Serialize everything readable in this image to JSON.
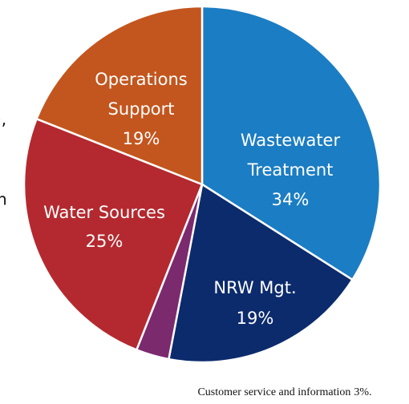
{
  "chart_data": {
    "type": "pie",
    "categories": [
      [
        "Wastewater",
        "Treatment"
      ],
      [
        "NRW Mgt."
      ],
      [
        "Customer service and information"
      ],
      [
        "Water Sources"
      ],
      [
        "Operations",
        "Support"
      ]
    ],
    "values": [
      34,
      19,
      3,
      25,
      19
    ],
    "value_labels": [
      "34%",
      "19%",
      "3%.",
      "25%",
      "19%"
    ],
    "colors": [
      "#1b7dc3",
      "#0c2b6d",
      "#7c2a6e",
      "#b4292f",
      "#c3561e"
    ],
    "annotations": [
      "),",
      "n"
    ]
  }
}
